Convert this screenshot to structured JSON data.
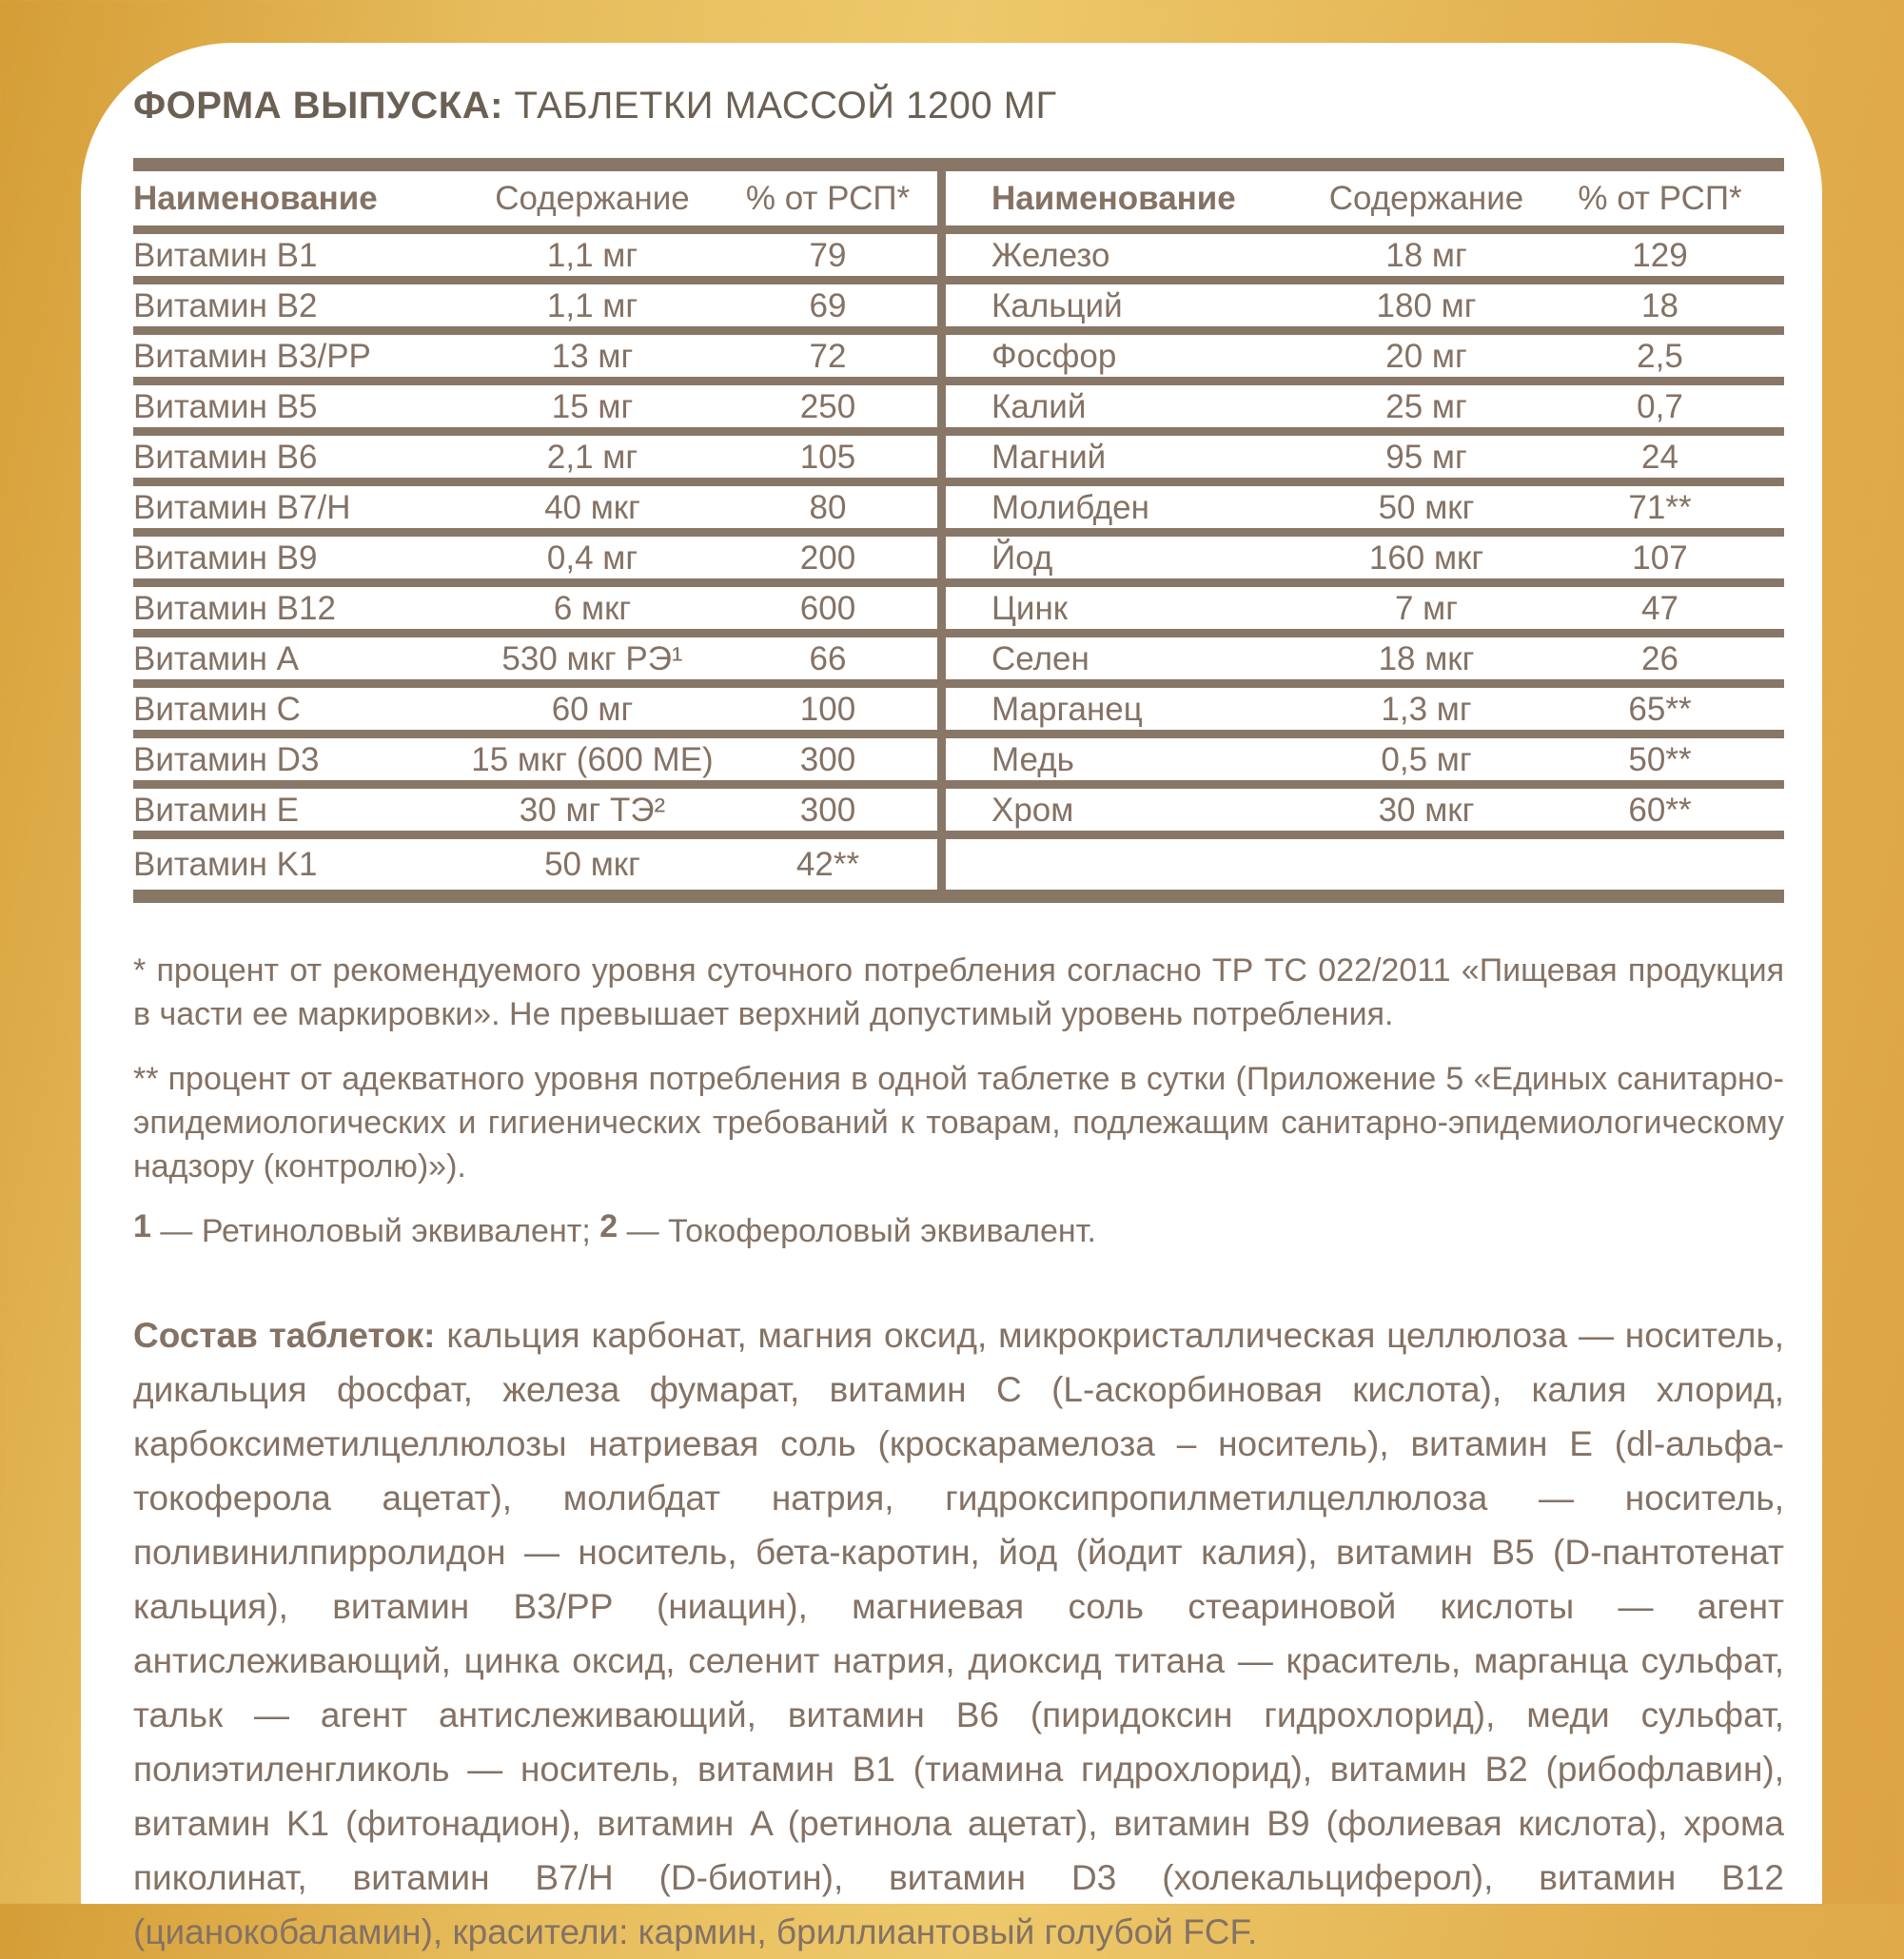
{
  "title": {
    "bold": "ФОРМА ВЫПУСКА:",
    "regular": " ТАБЛЕТКИ МАССОЙ 1200 МГ"
  },
  "table": {
    "headers": {
      "name": "Наименование",
      "content": "Содержание",
      "pct": "% от РСП*"
    },
    "left_rows": [
      [
        "Витамин B1",
        "1,1 мг",
        "79"
      ],
      [
        "Витамин B2",
        "1,1 мг",
        "69"
      ],
      [
        "Витамин B3/PP",
        "13 мг",
        "72"
      ],
      [
        "Витамин B5",
        "15 мг",
        "250"
      ],
      [
        "Витамин B6",
        "2,1 мг",
        "105"
      ],
      [
        "Витамин B7/H",
        "40 мкг",
        "80"
      ],
      [
        "Витамин B9",
        "0,4 мг",
        "200"
      ],
      [
        "Витамин B12",
        "6 мкг",
        "600"
      ],
      [
        "Витамин A",
        "530 мкг РЭ¹",
        "66"
      ],
      [
        "Витамин C",
        "60 мг",
        "100"
      ],
      [
        "Витамин D3",
        "15 мкг (600 МЕ)",
        "300"
      ],
      [
        "Витамин E",
        "30 мг ТЭ²",
        "300"
      ],
      [
        "Витамин K1",
        "50 мкг",
        "42**"
      ]
    ],
    "right_rows": [
      [
        "Железо",
        "18 мг",
        "129"
      ],
      [
        "Кальций",
        "180 мг",
        "18"
      ],
      [
        "Фосфор",
        "20 мг",
        "2,5"
      ],
      [
        "Калий",
        "25 мг",
        "0,7"
      ],
      [
        "Магний",
        "95 мг",
        "24"
      ],
      [
        "Молибден",
        "50 мкг",
        "71**"
      ],
      [
        "Йод",
        "160 мкг",
        "107"
      ],
      [
        "Цинк",
        "7 мг",
        "47"
      ],
      [
        "Селен",
        "18 мкг",
        "26"
      ],
      [
        "Марганец",
        "1,3 мг",
        "65**"
      ],
      [
        "Медь",
        "0,5 мг",
        "50**"
      ],
      [
        "Хром",
        "30 мкг",
        "60**"
      ],
      [
        "",
        "",
        ""
      ]
    ]
  },
  "footnotes": {
    "rsp": "* процент от рекомендуемого уровня суточного потребления согласно ТР ТС 022/2011 «Пищевая продукция в части ее маркировки». Не превышает верхний допустимый уровень потребления.",
    "adequate": "** процент от адекватного уровня потребления в одной таблетке в сутки (Приложение 5 «Единых санитарно-эпидемиологических и гигиенических требований к товарам, подлежащим санитарно-эпидемиологическому надзору (контролю)»).",
    "equiv": {
      "marker1": "1",
      "text1": " — Ретиноловый эквивалент; ",
      "marker2": "2",
      "text2": " — Токофероловый эквивалент."
    }
  },
  "composition": {
    "label": "Состав таблеток:",
    "text": " кальция карбонат, магния оксид, микрокристаллическая целлюлоза — носитель, дикальция фосфат, железа фумарат, витамин C (L-аскорбиновая кислота), калия хлорид, карбоксиметилцеллюлозы натриевая соль (кроскарамелоза – носитель), витамин E (dl-альфа-токоферола ацетат), молибдат натрия, гидроксипропилметилцеллюлоза — носитель, поливинилпирролидон — носитель, бета-каротин, йод (йодит калия), витамин B5 (D-пантотенат кальция), витамин B3/PP (ниацин), магниевая соль стеариновой кислоты — агент антислеживающий, цинка оксид, селенит натрия, диоксид титана — краситель, марганца сульфат, тальк — агент антислеживающий, витамин B6 (пиридоксин гидрохлорид), меди сульфат, полиэтиленгликоль — носитель, витамин B1 (тиамина гидрохлорид), витамин B2 (рибофлавин), витамин K1 (фитонадион), витамин A (ретинола ацетат), витамин B9 (фолиевая кислота), хрома пиколинат, витамин B7/H (D-биотин), витамин D3 (холекальциферол), витамин B12 (цианокобаламин), красители: кармин, бриллиантовый голубой FCF."
  },
  "colors": {
    "gold_dark": "#d59d36",
    "gold_light": "#edc96b",
    "gold_mid": "#dda344",
    "card_background": "#ffffff",
    "text_brown": "#847264",
    "border_brown": "#887767",
    "title_brown": "#6b6054"
  }
}
